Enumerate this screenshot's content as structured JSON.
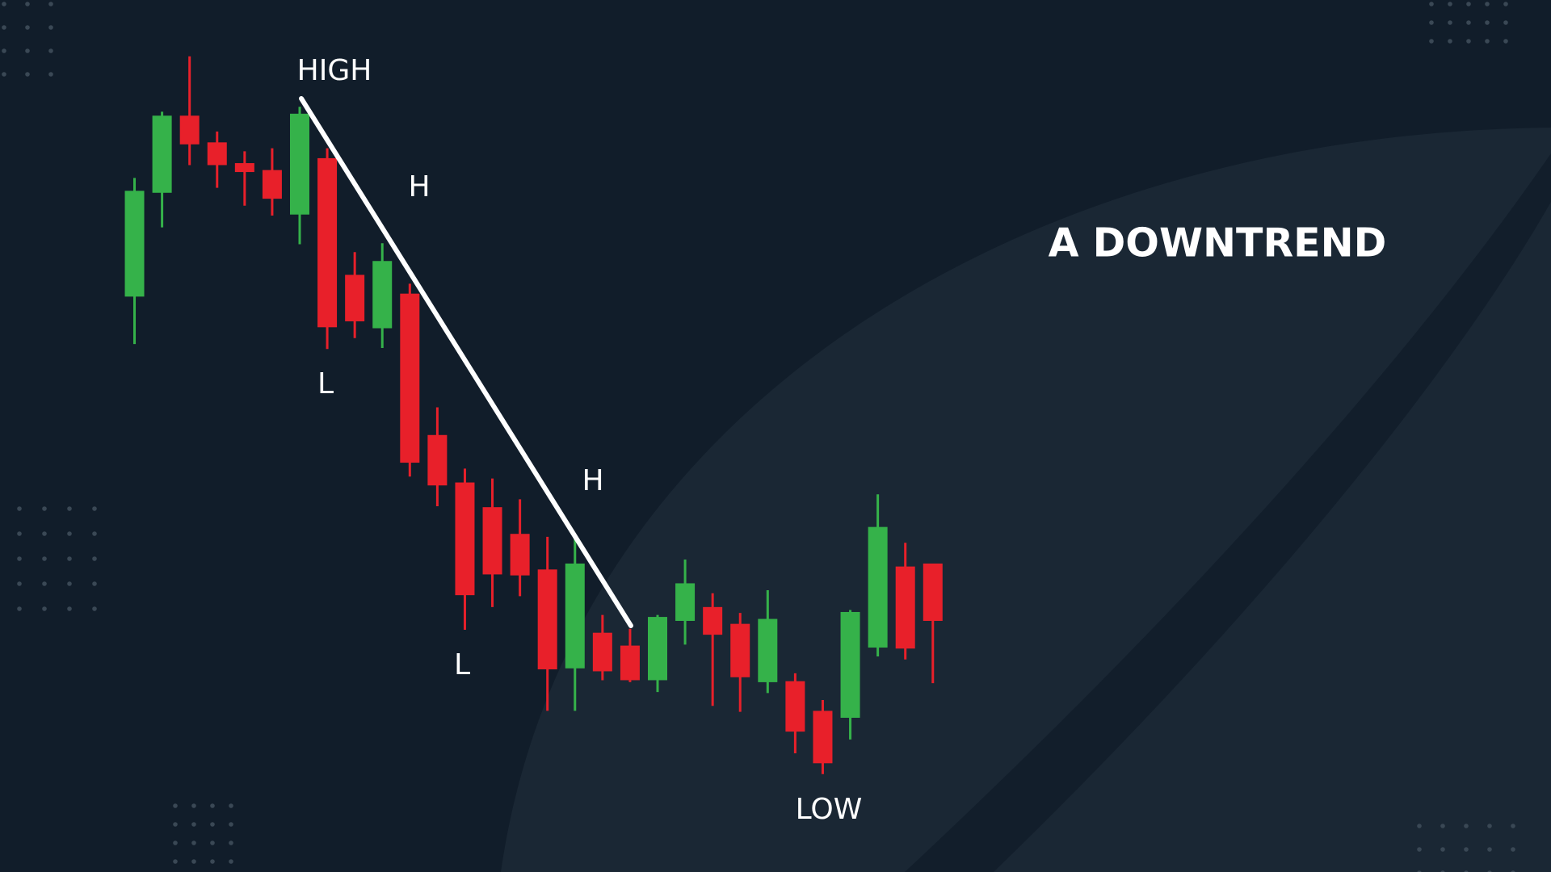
{
  "chart_data": {
    "type": "candlestick",
    "title": "A DOWNTREND",
    "annotations": [
      "HIGH",
      "H",
      "L",
      "H",
      "L",
      "LOW"
    ],
    "open": [
      60.0,
      70.5,
      78.3,
      75.6,
      73.5,
      72.8,
      68.3,
      74.0,
      62.2,
      56.8,
      60.3,
      46.0,
      41.2,
      38.7,
      36.0,
      32.4,
      22.4,
      26.0,
      24.7,
      21.2,
      27.2,
      28.6,
      26.9,
      21.0,
      21.1,
      18.1,
      17.4,
      24.5,
      32.7,
      33.0
    ],
    "high": [
      72.0,
      78.7,
      84.3,
      76.7,
      74.7,
      75.0,
      79.2,
      75.0,
      64.5,
      65.4,
      61.3,
      48.8,
      42.6,
      41.6,
      39.5,
      35.7,
      35.5,
      27.8,
      26.4,
      27.8,
      33.4,
      30.0,
      28.0,
      30.3,
      21.9,
      19.2,
      28.3,
      40.0,
      35.1,
      33.0
    ],
    "low": [
      55.2,
      67.0,
      73.3,
      71.0,
      69.2,
      68.2,
      65.3,
      54.7,
      55.8,
      54.8,
      41.8,
      38.8,
      26.3,
      28.6,
      29.7,
      18.1,
      18.1,
      21.2,
      21.0,
      20.0,
      24.8,
      18.6,
      18.0,
      19.9,
      13.8,
      11.7,
      15.2,
      23.6,
      23.3,
      20.9
    ],
    "close": [
      70.7,
      78.3,
      75.4,
      73.3,
      72.6,
      69.9,
      78.5,
      56.9,
      57.5,
      63.6,
      43.2,
      40.9,
      29.8,
      31.9,
      31.8,
      22.3,
      33.0,
      22.1,
      21.2,
      27.6,
      31.0,
      25.8,
      21.5,
      27.4,
      16.0,
      12.8,
      28.1,
      36.7,
      24.4,
      27.2
    ],
    "up_color": "#35b24a",
    "down_color": "#e8202a",
    "ylim": [
      2,
      90
    ]
  }
}
